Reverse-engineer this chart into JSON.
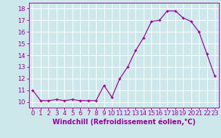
{
  "x": [
    0,
    1,
    2,
    3,
    4,
    5,
    6,
    7,
    8,
    9,
    10,
    11,
    12,
    13,
    14,
    15,
    16,
    17,
    18,
    19,
    20,
    21,
    22,
    23
  ],
  "y": [
    11.0,
    10.1,
    10.1,
    10.2,
    10.1,
    10.2,
    10.1,
    10.1,
    10.1,
    11.4,
    10.4,
    12.0,
    13.0,
    14.4,
    15.5,
    16.9,
    17.0,
    17.8,
    17.8,
    17.2,
    16.9,
    16.0,
    14.1,
    12.2
  ],
  "line_color": "#990099",
  "marker": "+",
  "marker_size": 3,
  "background_color": "#cce8ea",
  "grid_color": "#b0d8dc",
  "xlabel": "Windchill (Refroidissement éolien,°C)",
  "ylabel": "",
  "xlim": [
    -0.5,
    23.5
  ],
  "ylim": [
    9.5,
    18.5
  ],
  "yticks": [
    10,
    11,
    12,
    13,
    14,
    15,
    16,
    17,
    18
  ],
  "xtick_labels": [
    "0",
    "1",
    "2",
    "3",
    "4",
    "5",
    "6",
    "7",
    "8",
    "9",
    "10",
    "11",
    "12",
    "13",
    "14",
    "15",
    "16",
    "17",
    "18",
    "19",
    "20",
    "21",
    "22",
    "23"
  ],
  "label_color": "#990099",
  "tick_color": "#990099",
  "font_size": 6.5,
  "xlabel_fontsize": 7,
  "linewidth": 0.9,
  "markeredgewidth": 1.0
}
